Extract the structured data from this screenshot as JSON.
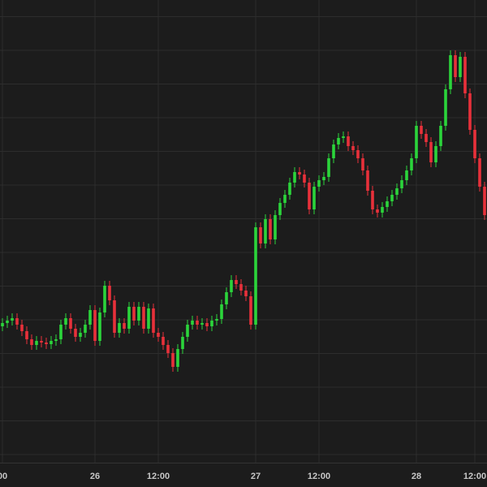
{
  "chart_data": {
    "type": "candlestick",
    "up_color": "#2bd43b",
    "down_color": "#e8303a",
    "xlim": [
      -0.5,
      99.5
    ],
    "ylim": [
      30,
      600
    ],
    "xticks": [
      {
        "value": 0,
        "label": "00"
      },
      {
        "value": 19,
        "label": "26"
      },
      {
        "value": 32,
        "label": "12:00"
      },
      {
        "value": 52,
        "label": "27"
      },
      {
        "value": 65,
        "label": "12:00"
      },
      {
        "value": 85,
        "label": "28"
      },
      {
        "value": 97,
        "label": "12:00"
      }
    ],
    "grid": true,
    "open": [
      198,
      202,
      205,
      208,
      200,
      192,
      182,
      175,
      180,
      178,
      176,
      180,
      182,
      200,
      208,
      195,
      185,
      190,
      200,
      218,
      180,
      215,
      248,
      230,
      190,
      202,
      195,
      222,
      205,
      222,
      195,
      220,
      190,
      185,
      175,
      165,
      148,
      170,
      185,
      200,
      205,
      200,
      202,
      198,
      205,
      207,
      225,
      240,
      255,
      250,
      242,
      235,
      200,
      320,
      300,
      330,
      305,
      335,
      350,
      360,
      375,
      388,
      385,
      375,
      342,
      370,
      378,
      382,
      405,
      422,
      430,
      432,
      420,
      415,
      405,
      390,
      365,
      342,
      338,
      345,
      352,
      360,
      368,
      378,
      390,
      405,
      445,
      435,
      425,
      400,
      420,
      445,
      490,
      532,
      505,
      530,
      485,
      440,
      405,
      370
    ],
    "high": [
      208,
      211,
      214,
      214,
      206,
      198,
      188,
      186,
      186,
      184,
      186,
      188,
      206,
      214,
      214,
      201,
      196,
      206,
      224,
      224,
      221,
      254,
      254,
      236,
      208,
      208,
      228,
      228,
      228,
      228,
      226,
      226,
      196,
      191,
      181,
      171,
      176,
      191,
      206,
      211,
      211,
      208,
      208,
      211,
      213,
      231,
      246,
      261,
      261,
      256,
      248,
      241,
      326,
      326,
      336,
      336,
      341,
      356,
      366,
      381,
      394,
      394,
      391,
      381,
      376,
      384,
      388,
      411,
      428,
      436,
      438,
      438,
      426,
      421,
      411,
      396,
      371,
      348,
      351,
      358,
      366,
      374,
      384,
      396,
      411,
      451,
      451,
      441,
      431,
      426,
      451,
      496,
      538,
      538,
      536,
      536,
      491,
      446,
      411,
      376
    ],
    "low": [
      192,
      196,
      199,
      194,
      186,
      176,
      169,
      169,
      172,
      170,
      170,
      174,
      176,
      194,
      189,
      179,
      179,
      184,
      194,
      174,
      174,
      209,
      224,
      184,
      184,
      189,
      189,
      199,
      199,
      189,
      189,
      184,
      179,
      169,
      159,
      142,
      142,
      164,
      179,
      194,
      194,
      194,
      192,
      192,
      199,
      201,
      219,
      234,
      244,
      236,
      229,
      194,
      194,
      294,
      294,
      299,
      299,
      329,
      344,
      354,
      369,
      379,
      369,
      336,
      336,
      364,
      372,
      376,
      399,
      416,
      424,
      414,
      409,
      399,
      384,
      359,
      336,
      332,
      332,
      339,
      346,
      354,
      362,
      372,
      384,
      399,
      429,
      419,
      394,
      394,
      414,
      439,
      484,
      499,
      499,
      479,
      434,
      399,
      364,
      329
    ],
    "close": [
      202,
      205,
      208,
      200,
      192,
      182,
      175,
      180,
      178,
      176,
      180,
      182,
      200,
      208,
      195,
      185,
      190,
      200,
      218,
      180,
      215,
      248,
      230,
      190,
      202,
      195,
      222,
      205,
      222,
      195,
      220,
      190,
      185,
      175,
      165,
      148,
      170,
      185,
      200,
      205,
      200,
      202,
      198,
      205,
      207,
      225,
      240,
      255,
      250,
      242,
      235,
      200,
      320,
      300,
      330,
      305,
      335,
      350,
      360,
      375,
      388,
      385,
      375,
      342,
      370,
      378,
      382,
      405,
      422,
      430,
      432,
      420,
      415,
      405,
      390,
      365,
      342,
      338,
      345,
      352,
      360,
      368,
      378,
      390,
      405,
      445,
      435,
      425,
      400,
      420,
      445,
      490,
      532,
      505,
      530,
      485,
      440,
      405,
      370,
      335
    ]
  }
}
